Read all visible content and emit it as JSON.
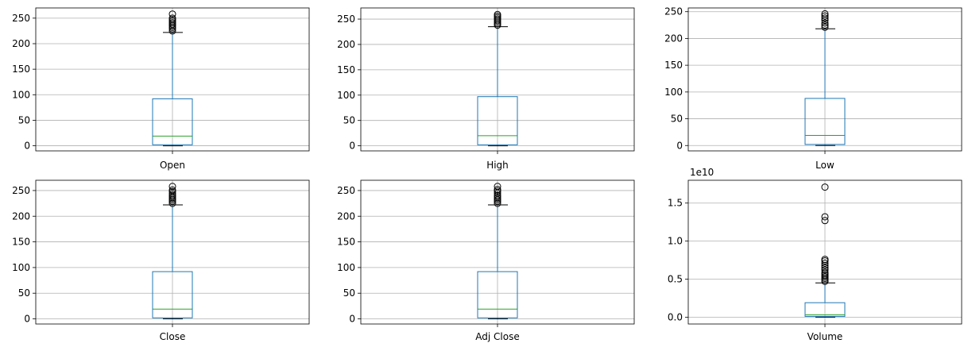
{
  "colors": {
    "box": "#1f77b4",
    "median": "#2ca02c",
    "grid": "#b0b0b0",
    "frame": "#000000",
    "flier": "#000000"
  },
  "chart_data": [
    {
      "type": "boxplot",
      "category": "Open",
      "ylim": [
        -10,
        270
      ],
      "yticks": [
        0,
        50,
        100,
        150,
        200,
        250
      ],
      "ytick_labels": [
        "0",
        "50",
        "100",
        "150",
        "200",
        "250"
      ],
      "grid": true,
      "stats": {
        "whisker_low": 0,
        "q1": 2,
        "median": 19,
        "q3": 92,
        "whisker_high": 222
      },
      "fliers": [
        225,
        229,
        232,
        235,
        238,
        241,
        244,
        247,
        250,
        258
      ]
    },
    {
      "type": "boxplot",
      "category": "High",
      "ylim": [
        -10,
        272
      ],
      "yticks": [
        0,
        50,
        100,
        150,
        200,
        250
      ],
      "ytick_labels": [
        "0",
        "50",
        "100",
        "150",
        "200",
        "250"
      ],
      "grid": true,
      "stats": {
        "whisker_low": 0,
        "q1": 2,
        "median": 20,
        "q3": 97,
        "whisker_high": 235
      },
      "fliers": [
        238,
        241,
        244,
        247,
        250,
        253,
        256,
        259
      ]
    },
    {
      "type": "boxplot",
      "category": "Low",
      "ylim": [
        -10,
        257
      ],
      "yticks": [
        0,
        50,
        100,
        150,
        200,
        250
      ],
      "ytick_labels": [
        "0",
        "50",
        "100",
        "150",
        "200",
        "250"
      ],
      "grid": true,
      "stats": {
        "whisker_low": 0,
        "q1": 2,
        "median": 19,
        "q3": 88,
        "whisker_high": 218
      },
      "fliers": [
        221,
        225,
        229,
        234,
        238,
        242,
        246
      ]
    },
    {
      "type": "boxplot",
      "category": "Close",
      "ylim": [
        -10,
        270
      ],
      "yticks": [
        0,
        50,
        100,
        150,
        200,
        250
      ],
      "ytick_labels": [
        "0",
        "50",
        "100",
        "150",
        "200",
        "250"
      ],
      "grid": true,
      "stats": {
        "whisker_low": 0,
        "q1": 2,
        "median": 19,
        "q3": 92,
        "whisker_high": 222
      },
      "fliers": [
        225,
        229,
        232,
        235,
        238,
        241,
        244,
        248,
        251,
        258
      ]
    },
    {
      "type": "boxplot",
      "category": "Adj Close",
      "ylim": [
        -10,
        270
      ],
      "yticks": [
        0,
        50,
        100,
        150,
        200,
        250
      ],
      "ytick_labels": [
        "0",
        "50",
        "100",
        "150",
        "200",
        "250"
      ],
      "grid": true,
      "stats": {
        "whisker_low": 0,
        "q1": 2,
        "median": 19,
        "q3": 92,
        "whisker_high": 222
      },
      "fliers": [
        225,
        229,
        232,
        235,
        238,
        241,
        245,
        249,
        252,
        258
      ]
    },
    {
      "type": "boxplot",
      "category": "Volume",
      "ylim": [
        -0.09,
        1.8
      ],
      "yticks": [
        0,
        0.5,
        1.0,
        1.5
      ],
      "ytick_labels": [
        "0.0",
        "0.5",
        "1.0",
        "1.5"
      ],
      "scale_label": "1e10",
      "grid": true,
      "stats": {
        "whisker_low": 0.0,
        "q1": 0.01,
        "median": 0.03,
        "q3": 0.19,
        "whisker_high": 0.45
      },
      "fliers": [
        0.47,
        0.49,
        0.51,
        0.53,
        0.55,
        0.57,
        0.59,
        0.62,
        0.65,
        0.68,
        0.71,
        0.74,
        0.76,
        1.27,
        1.32,
        1.71
      ]
    }
  ]
}
